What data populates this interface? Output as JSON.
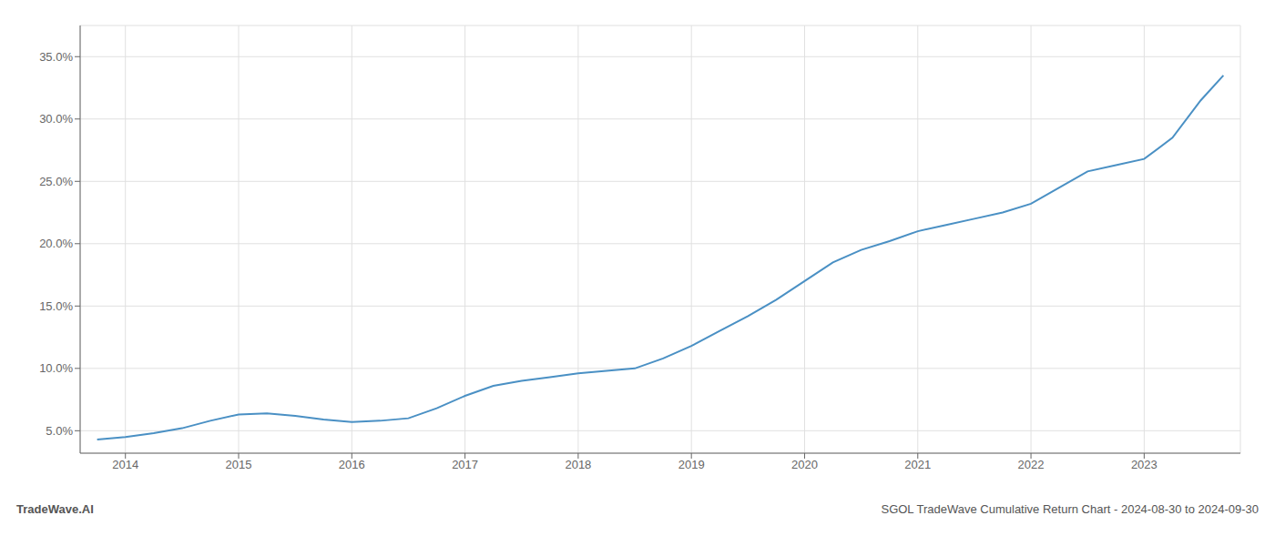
{
  "chart_data": {
    "type": "line",
    "title": "SGOL TradeWave Cumulative Return Chart - 2024-08-30 to 2024-09-30",
    "annotations": [
      "TradeWave.AI"
    ],
    "x": [
      2013.75,
      2014.0,
      2014.25,
      2014.5,
      2014.75,
      2015.0,
      2015.25,
      2015.5,
      2015.75,
      2016.0,
      2016.25,
      2016.5,
      2016.75,
      2017.0,
      2017.25,
      2017.5,
      2017.75,
      2018.0,
      2018.25,
      2018.5,
      2018.75,
      2019.0,
      2019.25,
      2019.5,
      2019.75,
      2020.0,
      2020.25,
      2020.5,
      2020.75,
      2021.0,
      2021.25,
      2021.5,
      2021.75,
      2022.0,
      2022.25,
      2022.5,
      2022.75,
      2023.0,
      2023.25,
      2023.5,
      2023.7
    ],
    "values": [
      4.3,
      4.5,
      4.8,
      5.2,
      5.8,
      6.3,
      6.4,
      6.2,
      5.9,
      5.7,
      5.8,
      6.0,
      6.8,
      7.8,
      8.6,
      9.0,
      9.3,
      9.6,
      9.8,
      10.0,
      10.8,
      11.8,
      13.0,
      14.2,
      15.5,
      17.0,
      18.5,
      19.5,
      20.2,
      21.0,
      21.5,
      22.0,
      22.5,
      23.2,
      24.5,
      25.8,
      26.3,
      26.8,
      28.5,
      31.5,
      33.5
    ],
    "color": "#4a90c4",
    "xlim": [
      2013.6,
      2023.85
    ],
    "ylim": [
      3.2,
      37.5
    ],
    "xticks": [
      2014,
      2015,
      2016,
      2017,
      2018,
      2019,
      2020,
      2021,
      2022,
      2023
    ],
    "yticks": [
      {
        "value": 5.0,
        "label": "5.0%"
      },
      {
        "value": 10.0,
        "label": "10.0%"
      },
      {
        "value": 15.0,
        "label": "15.0%"
      },
      {
        "value": 20.0,
        "label": "20.0%"
      },
      {
        "value": 25.0,
        "label": "25.0%"
      },
      {
        "value": 30.0,
        "label": "30.0%"
      },
      {
        "value": 35.0,
        "label": "35.0%"
      }
    ],
    "grid": true
  }
}
